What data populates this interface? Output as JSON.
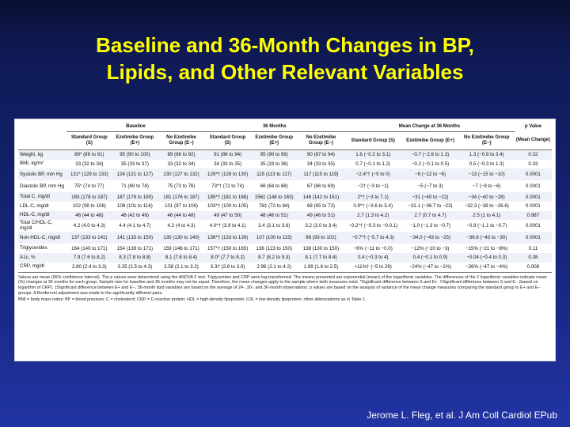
{
  "slide": {
    "title_line1": "Baseline and 36-Month Changes in BP,",
    "title_line2": "Lipids, and Other Relevant Variables",
    "citation": "Jerome L. Fleg, et al. J Am Coll Cardiol EPub"
  },
  "table": {
    "group_headers": [
      "Baseline",
      "36 Months",
      "Mean Change at 36 Months",
      "p Value"
    ],
    "group_header_p_sub": "(Mean Change)",
    "column_headers": [
      "Standard Group (S)",
      "Ezetimibe Group (E+)",
      "No Ezetimibe Group (E−)",
      "Standard Group (S)",
      "Ezetimibe Group (E+)",
      "No Ezetimibe Group (E−)",
      "Standard Group (S)",
      "Ezetimibe Group (E+)",
      "No Ezetimibe Group (E−)"
    ],
    "rows": [
      {
        "variable": "Weight, kg",
        "cells": [
          "89* (86 to 91)",
          "95 (90 to 100)",
          "89 (86 to 92)",
          "91 (88 to 94)",
          "95 (90 to 99)",
          "90 (87 to 94)",
          "1.6 (−0.2 to 3.1)",
          "−0.7 (−2.6 to 1.3)",
          "1.3 (−0.8 to 3.4)",
          "0.32"
        ]
      },
      {
        "variable": "BMI, kg/m²",
        "cells": [
          "33 (32 to 34)",
          "35 (33 to 37)",
          "33 (32 to 34)",
          "34 (33 to 35)",
          "35 (33 to 36)",
          "34 (33 to 35)",
          "0.7 (−0.1 to 1.2)",
          "−0.2 (−0.1 to 0.5)",
          "0.5 (−0.3 to 1.3)",
          "0.33"
        ]
      },
      {
        "variable": "Systolic BP, mm Hg",
        "cells": [
          "131* (129 to 133)",
          "124 (121 to 127)",
          "130 (127 to 132)",
          "129*† (128 to 130)",
          "115 (113 to 117)",
          "117 (115 to 119)",
          "−2.4*† (−5 to 0)",
          "−9 (−12 to −6)",
          "−13 (−15 to −10)",
          "0.0001"
        ]
      },
      {
        "variable": "Diastolic BP, mm Hg",
        "cells": [
          "75* (74 to 77)",
          "71 (69 to 74)",
          "75 (73 to 76)",
          "73*† (72 to 74)",
          "66 (64 to 68)",
          "67 (66 to 69)",
          "−2† (−3 to −1)",
          "−5 (−7 to 3)",
          "−7 (−9 to −6)",
          "0.0001"
        ]
      },
      {
        "variable": "Total C, mg/dl",
        "cells": [
          "183 (178 to 187)",
          "187 (179 to 195)",
          "181 (176 to 187)",
          "185*† (181 to 188)",
          "156‡ (148 to 163)",
          "146 (142 to 151)",
          "2*† (−3 to 7.1)",
          "−31 (−40 to −22)",
          "−34 (−40 to −28)",
          "0.0001"
        ]
      },
      {
        "variable": "LDL-C, mg/dl",
        "cells": [
          "102 (98 to 106)",
          "108 (101 to 116)",
          "101 (97 to 106)",
          "103*† (100 to 105)",
          "78‡ (72 to 84)",
          "68 (65 to 72)",
          "0.9*† (−3.6 to 5.4)",
          "−31.1 (−36.7 to −23)",
          "−32.3 (−38 to −26.6)",
          "0.0001"
        ]
      },
      {
        "variable": "HDL-C, mg/dl",
        "cells": [
          "46 (44 to 48)",
          "46 (42 to 49)",
          "46 (44 to 48)",
          "49 (47 to 50)",
          "48 (46 to 51)",
          "49 (46 to 51)",
          "2.7 (1.3 to 4.2)",
          "2.7 (0.7 to 4.7)",
          "2.5 (1 to 4.1)",
          "0.987"
        ]
      },
      {
        "variable": "Total C/HDL-C, mg/dl",
        "cells": [
          "4.2 (4.0 to 4.3)",
          "4.4 (4.1 to 4.7)",
          "4.2 (4 to 4.3)",
          "4.0*† (3.9 to 4.1)",
          "3.4 (3.1 to 3.6)",
          "3.2 (3.0 to 3.4)",
          "−0.2*† (−0.3 to −0.0.1)",
          "−1.0 (−1.3 to −0.7)",
          "−0.9 (−1.1 to −0.7)",
          "0.0001"
        ]
      },
      {
        "variable": "Non-HDL-C, mg/dl",
        "cells": [
          "137 (133 to 141)",
          "141 (133 to 150)",
          "135 (130 to 140)",
          "136*† (133 to 139)",
          "107 (100 to 115)",
          "98 (93 to 102)",
          "−0.7*† (−5.7 to 4.3)",
          "−34.0 (−43 to −25)",
          "−36.6 (−43 to −30)",
          "0.0001"
        ]
      },
      {
        "variable": "Triglycerides",
        "cells": [
          "164 (140 to 171)",
          "154 (139 to 171)",
          "159 (148 to 171)",
          "157*† (150 to 165)",
          "136 (123 to 150)",
          "138 (130 to 150)",
          "−6% (−11 to −0.0)",
          "−12% (−20 to −3)",
          "−15% (−21 to −8%)",
          "0.11"
        ]
      },
      {
        "variable": "A1c, %",
        "cells": [
          "7.9 (7.6 to 8.2)",
          "8.3 (7.8 to 8.8)",
          "8.1 (7.8 to 8.4)",
          "8.0* (7.7 to 8.2)",
          "8.7 (8.2 to 9.3)",
          "8.1 (7.7 to 8.4)",
          "0.4 (−0.3 to 4)",
          "0.4 (−0.1 to 0.9)",
          "−0.04 (−0.4 to 0.3)",
          "0.38"
        ]
      },
      {
        "variable": "CRP, mg/dl",
        "cells": [
          "2.80 (2.4 to 3.3)",
          "3.25 (2.5 to 4.3)",
          "2.58 (2.1 to 3.2)",
          "3.3† (2.8 to 3.9)",
          "2.96 (2.1 to 4.2)",
          "1.99 (1.6 to 2.5)",
          "+11%† (−5 to 26)",
          "−24% (−47 to −1%)",
          "−26% (−47 to −4%)",
          "0.008"
        ]
      }
    ],
    "footnote": "Values are mean (95% confidence interval). The p values were determined using the ANOVA F test. Triglycerides and CRP were log-transformed. The means presented are exponential (mean) of the logarithmic variables. The differences of the 2 logarithmic variables indicate mean (%) changes at 36 months for each group. Sample size for baseline and 36 months may not be equal. Therefore, the mean changes apply to the sample where both measures exist. *Significant difference between S and E+. †Significant difference between S and E− (based on logarithm of CRP). ‡Significant difference between E+ and E−. 36-month lipid variables are based on the average of 24-, 30-, and 36-month observations. p values are based on the analysis of variance of the mean change measures comparing the standard group to E+ and E− groups. A Bonferroni adjustment was made to the significantly different pairs.",
    "abbreviations": "BMI = body mass index; BP = blood pressure; C = cholesterol; CRP = C-reactive protein; HDL = high-density lipoprotein; LDL = low-density lipoprotein; other abbreviations as in Table 1."
  }
}
